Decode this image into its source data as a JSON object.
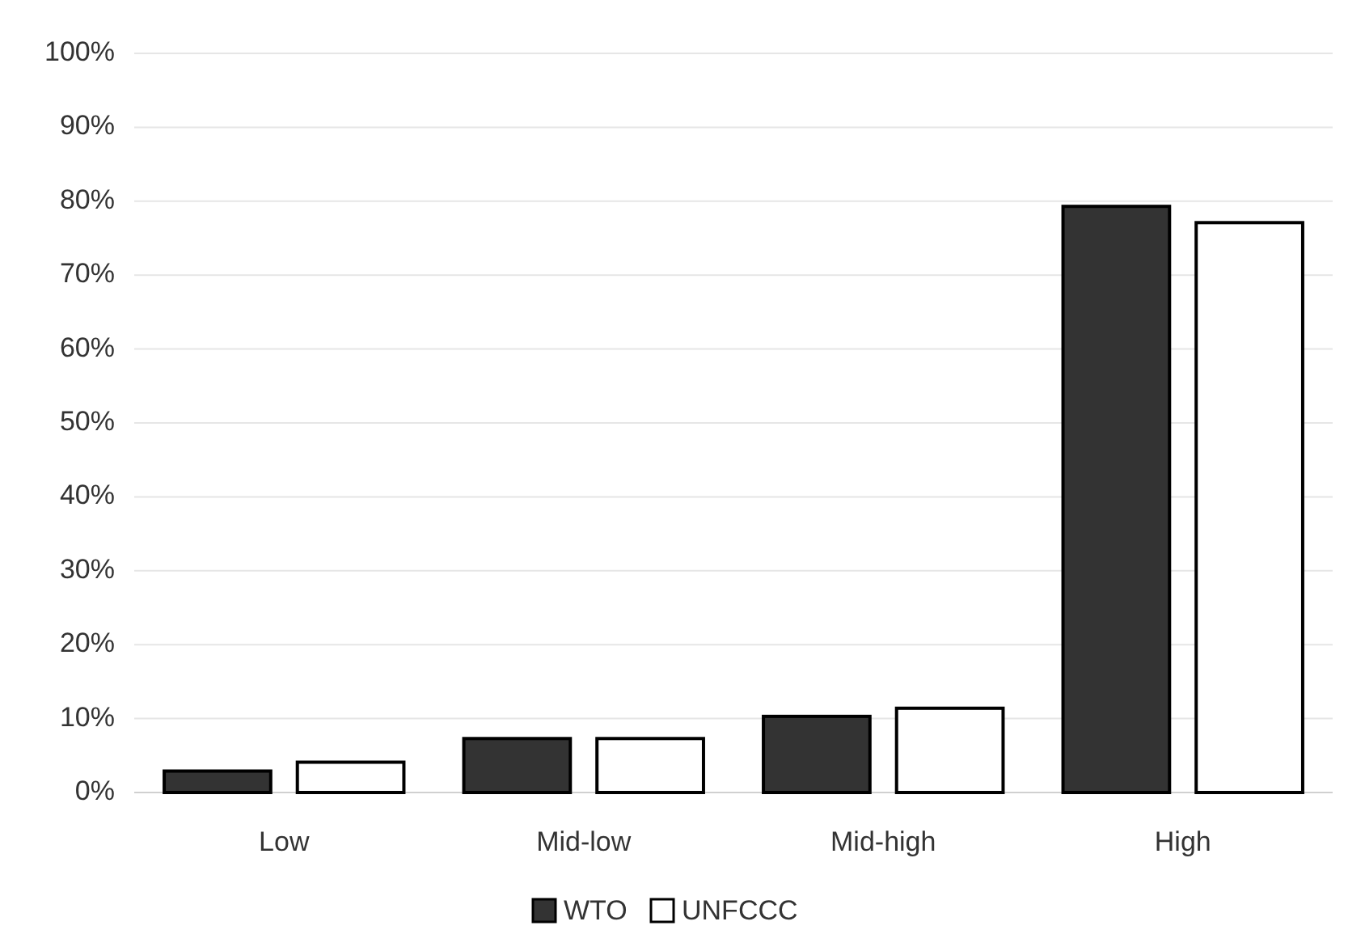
{
  "chart_data": {
    "type": "bar",
    "categories": [
      "Low",
      "Mid-low",
      "Mid-high",
      "High"
    ],
    "series": [
      {
        "name": "WTO",
        "color": "#333333",
        "values": [
          2.9,
          7.3,
          10.3,
          79.3
        ]
      },
      {
        "name": "UNFCCC",
        "color": "#ffffff",
        "values": [
          4.1,
          7.3,
          11.4,
          77.1
        ]
      }
    ],
    "ylim": [
      0,
      100
    ],
    "yticks": [
      {
        "value": 0,
        "label": "0%"
      },
      {
        "value": 10,
        "label": "10%"
      },
      {
        "value": 20,
        "label": "20%"
      },
      {
        "value": 30,
        "label": "30%"
      },
      {
        "value": 40,
        "label": "40%"
      },
      {
        "value": 50,
        "label": "50%"
      },
      {
        "value": 60,
        "label": "60%"
      },
      {
        "value": 70,
        "label": "70%"
      },
      {
        "value": 80,
        "label": "80%"
      },
      {
        "value": 90,
        "label": "90%"
      },
      {
        "value": 100,
        "label": "100%"
      }
    ],
    "grid": "y",
    "legend": "bottom"
  }
}
